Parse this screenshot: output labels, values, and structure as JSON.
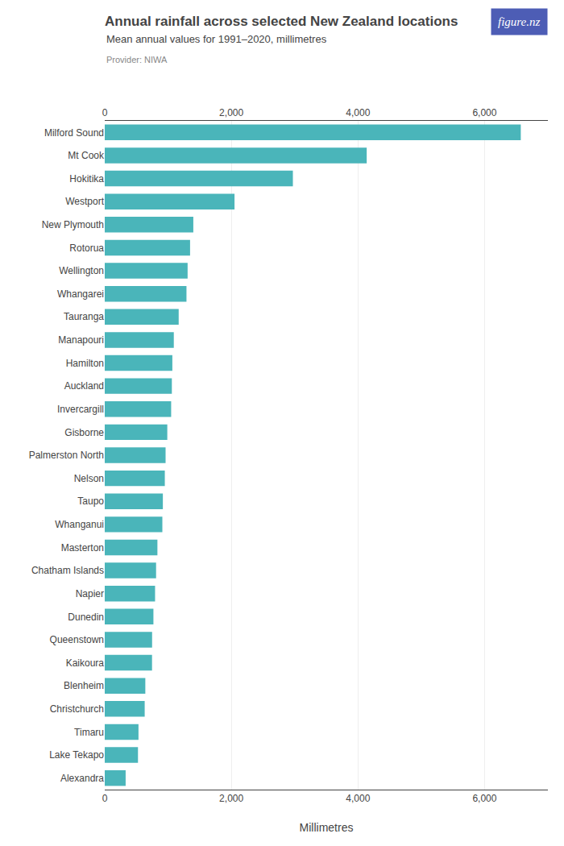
{
  "chart_data": {
    "type": "bar",
    "orientation": "horizontal",
    "title": "Annual rainfall across selected New Zealand locations",
    "subtitle": "Mean annual values for 1991–2020, millimetres",
    "annotations": [
      {
        "text": "Provider: NIWA"
      },
      {
        "text": "figure.nz",
        "color": "#4d5db5"
      }
    ],
    "xlabel": "Millimetres",
    "color": "#4ab5ba",
    "categories": [
      "Milford Sound",
      "Mt Cook",
      "Hokitika",
      "Westport",
      "New Plymouth",
      "Rotorua",
      "Wellington",
      "Whangarei",
      "Tauranga",
      "Manapouri",
      "Hamilton",
      "Auckland",
      "Invercargill",
      "Gisborne",
      "Palmerston North",
      "Nelson",
      "Taupo",
      "Whanganui",
      "Masterton",
      "Chatham Islands",
      "Napier",
      "Dunedin",
      "Queenstown",
      "Kaikoura",
      "Blenheim",
      "Christchurch",
      "Timaru",
      "Lake Tekapo",
      "Alexandra"
    ],
    "values": [
      6572,
      4138,
      2972,
      2050,
      1399,
      1348,
      1309,
      1291,
      1168,
      1091,
      1068,
      1060,
      1049,
      988,
      961,
      949,
      918,
      910,
      832,
      811,
      795,
      769,
      748,
      747,
      641,
      631,
      533,
      525,
      330
    ],
    "xlim": [
      0,
      7000
    ],
    "xticks": [
      0,
      {
        "value": 2000,
        "label": "2,000"
      },
      {
        "value": 4000,
        "label": "4,000"
      },
      {
        "value": 6000,
        "label": "6,000"
      }
    ],
    "grid": true
  }
}
